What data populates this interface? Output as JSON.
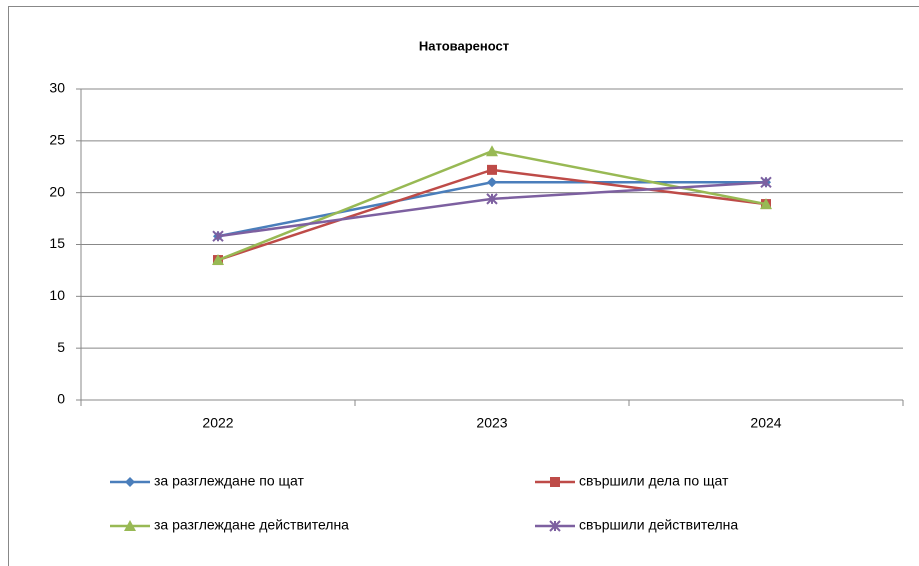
{
  "chart_data": {
    "type": "line",
    "title": "Натовареност",
    "categories": [
      "2022",
      "2023",
      "2024"
    ],
    "series": [
      {
        "name": "за разглеждане по щат",
        "color": "#4a7ebb",
        "marker": "diamond",
        "values": [
          15.8,
          21,
          21
        ]
      },
      {
        "name": "свършили дела по щат",
        "color": "#be4b48",
        "marker": "square",
        "values": [
          13.5,
          22.2,
          18.9
        ]
      },
      {
        "name": "за разглеждане действителна",
        "color": "#98b954",
        "marker": "triangle",
        "values": [
          13.5,
          24,
          18.9
        ]
      },
      {
        "name": "свършили действителна",
        "color": "#7d60a0",
        "marker": "x",
        "values": [
          15.8,
          19.4,
          21
        ]
      }
    ],
    "ylim": [
      0,
      30
    ],
    "yticks": [
      0,
      5,
      10,
      15,
      20,
      25,
      30
    ],
    "grid": true,
    "legend": "bottom"
  }
}
